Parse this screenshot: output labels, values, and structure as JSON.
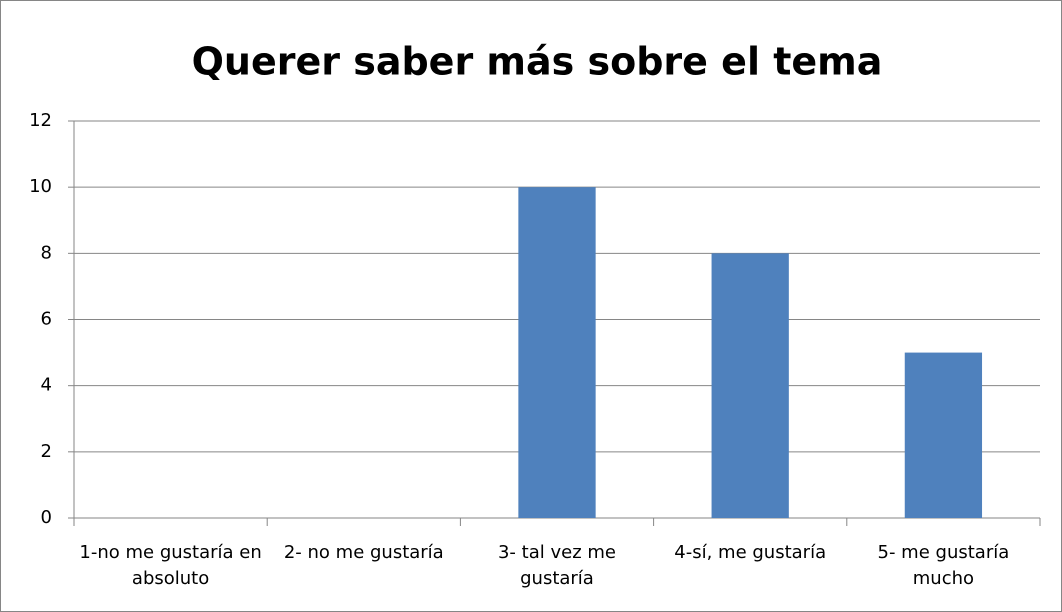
{
  "chart_data": {
    "type": "bar",
    "title": "Querer saber más sobre el tema",
    "categories": [
      "1-no me gustaría en absoluto",
      "2- no me gustaría",
      "3- tal vez me gustaría",
      "4-sí, me gustaría",
      "5- me gustaría mucho"
    ],
    "values": [
      0,
      0,
      10,
      8,
      5
    ],
    "color": "#4f81bd",
    "ylim": [
      0,
      12
    ],
    "yticks": [
      0,
      2,
      4,
      6,
      8,
      10,
      12
    ],
    "grid": true
  }
}
